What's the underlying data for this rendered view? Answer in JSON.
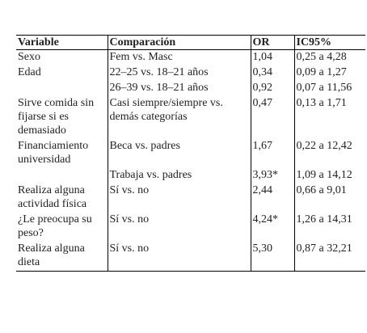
{
  "table": {
    "header": [
      "Variable",
      "Comparación",
      "OR",
      "IC95%"
    ],
    "rows": [
      [
        "Sexo",
        "Fem vs. Masc",
        "1,04",
        "0,25 a 4,28"
      ],
      [
        "Edad",
        "22–25 vs. 18–21 años",
        "0,34",
        "0,09 a 1,27"
      ],
      [
        null,
        "26–39 vs. 18–21 años",
        "0,92",
        "0,07 a 11,56"
      ],
      [
        "Sirve comida sin fijarse si es demasiado",
        "Casi siempre/siempre vs. demás categorías",
        "0,47",
        "0,13 a 1,71"
      ],
      [
        "Financiamiento universidad",
        "Beca vs. padres",
        "1,67",
        "0,22 a 12,42"
      ],
      [
        null,
        "Trabaja vs. padres",
        "3,93*",
        "1,09 a 14,12"
      ],
      [
        "Realiza alguna actividad física",
        "Sí vs. no",
        "2,44",
        "0,66 a 9,01"
      ],
      [
        "¿Le preocupa su peso?",
        "Sí vs. no",
        "4,24*",
        "1,26 a 14,31"
      ],
      [
        "Realiza alguna dieta",
        "Sí vs. no",
        "5,30",
        "0,87 a 32,21"
      ]
    ]
  }
}
